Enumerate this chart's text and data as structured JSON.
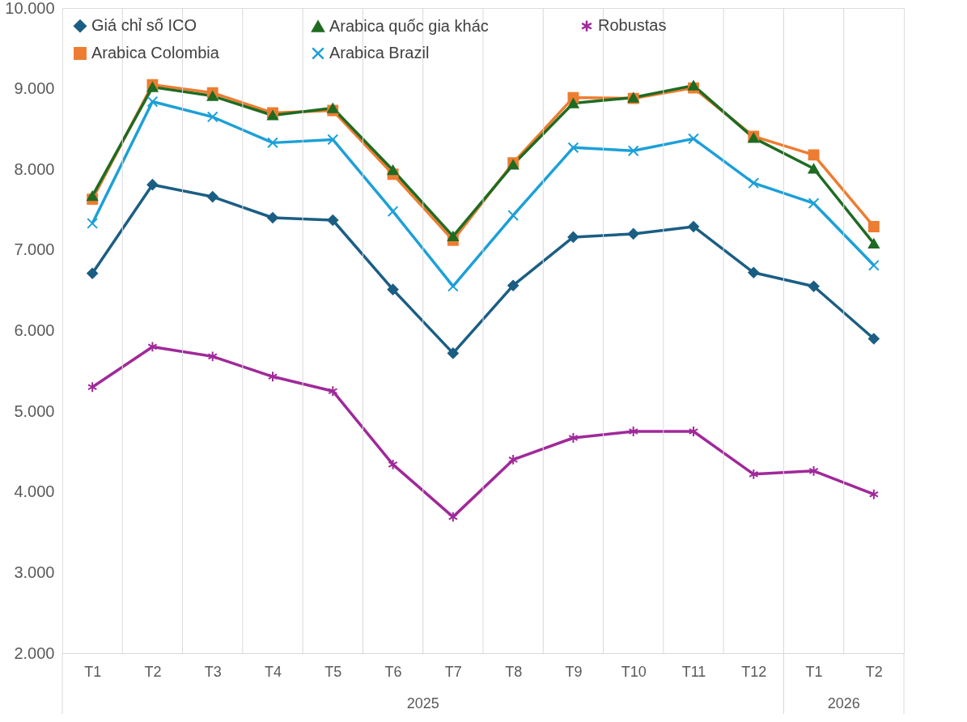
{
  "chart_data": {
    "type": "line",
    "categories": [
      "T1",
      "T2",
      "T3",
      "T4",
      "T5",
      "T6",
      "T7",
      "T8",
      "T9",
      "T10",
      "T11",
      "T12",
      "T1",
      "T2"
    ],
    "annotations": [
      "2025",
      "2026"
    ],
    "ylim": [
      2000,
      10000
    ],
    "yticks": [
      {
        "value": 2000,
        "label": "2.000"
      },
      {
        "value": 3000,
        "label": "3.000"
      },
      {
        "value": 4000,
        "label": "4.000"
      },
      {
        "value": 5000,
        "label": "5.000"
      },
      {
        "value": 6000,
        "label": "6.000"
      },
      {
        "value": 7000,
        "label": "7.000"
      },
      {
        "value": 8000,
        "label": "8.000"
      },
      {
        "value": 9000,
        "label": "9.000"
      },
      {
        "value": 10000,
        "label": "10.000"
      }
    ],
    "grid": "x",
    "legend": "top",
    "line_style": "solid",
    "series": [
      {
        "name": "Giá chỉ số ICO",
        "color": "#1b5e84",
        "marker": "diamond",
        "values": [
          6710,
          7810,
          7660,
          7400,
          7370,
          6510,
          5720,
          6560,
          7160,
          7200,
          7290,
          6720,
          6550,
          5900
        ]
      },
      {
        "name": "Arabica Colombia",
        "color": "#ed7d31",
        "marker": "square",
        "values": [
          7630,
          9050,
          8950,
          8700,
          8730,
          7940,
          7120,
          8080,
          8890,
          8880,
          9010,
          8410,
          8180,
          7290
        ]
      },
      {
        "name": "Arabica quốc gia khác",
        "color": "#1f6b22",
        "marker": "triangle",
        "values": [
          7670,
          9020,
          8910,
          8670,
          8760,
          7990,
          7170,
          8060,
          8820,
          8890,
          9040,
          8390,
          8010,
          7080
        ]
      },
      {
        "name": "Arabica Brazil",
        "color": "#1ca0d8",
        "marker": "cross",
        "values": [
          7330,
          8840,
          8650,
          8330,
          8370,
          7480,
          6550,
          7430,
          8270,
          8230,
          8380,
          7830,
          7580,
          6810
        ]
      },
      {
        "name": "Robustas",
        "color": "#a0299a",
        "marker": "cross",
        "values": [
          5300,
          5800,
          5680,
          5430,
          5250,
          4340,
          3690,
          4400,
          4670,
          4750,
          4750,
          4220,
          4260,
          3970
        ]
      }
    ]
  }
}
